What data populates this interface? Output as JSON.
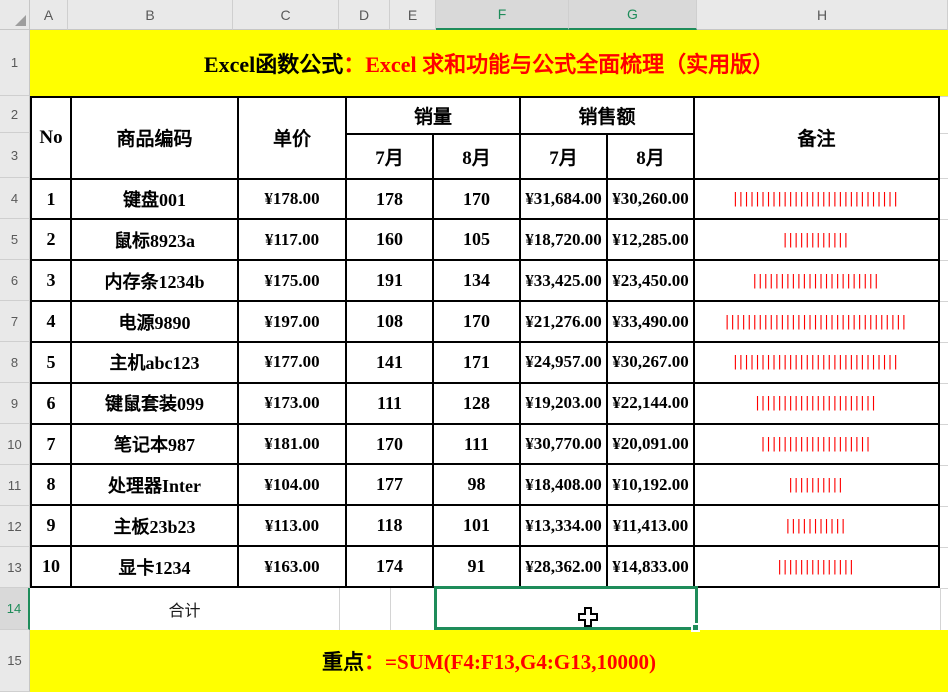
{
  "grid": {
    "column_headers": [
      "A",
      "B",
      "C",
      "D",
      "E",
      "F",
      "G",
      "H"
    ],
    "row_headers": [
      "1",
      "2",
      "3",
      "4",
      "5",
      "6",
      "7",
      "8",
      "9",
      "10",
      "11",
      "12",
      "13",
      "14",
      "15"
    ],
    "selected_columns": [
      "F",
      "G"
    ],
    "selected_row": "14"
  },
  "banner": {
    "black_text": "Excel函数公式",
    "red_text": "：Excel 求和功能与公式全面梳理（实用版）"
  },
  "table": {
    "headers": {
      "no": "No",
      "product_code": "商品编码",
      "unit_price": "单价",
      "sales_qty": "销量",
      "sales_amount": "销售额",
      "remark": "备注",
      "jul": "7月",
      "aug": "8月"
    },
    "bar_char": "|",
    "rows": [
      {
        "no": "1",
        "product": "键盘001",
        "price": "¥178.00",
        "qty_jul": "178",
        "qty_aug": "170",
        "rev_jul": "¥31,684.00",
        "rev_aug": "¥30,260.00",
        "remark_bars": 30
      },
      {
        "no": "2",
        "product": "鼠标8923a",
        "price": "¥117.00",
        "qty_jul": "160",
        "qty_aug": "105",
        "rev_jul": "¥18,720.00",
        "rev_aug": "¥12,285.00",
        "remark_bars": 12
      },
      {
        "no": "3",
        "product": "内存条1234b",
        "price": "¥175.00",
        "qty_jul": "191",
        "qty_aug": "134",
        "rev_jul": "¥33,425.00",
        "rev_aug": "¥23,450.00",
        "remark_bars": 23
      },
      {
        "no": "4",
        "product": "电源9890",
        "price": "¥197.00",
        "qty_jul": "108",
        "qty_aug": "170",
        "rev_jul": "¥21,276.00",
        "rev_aug": "¥33,490.00",
        "remark_bars": 33
      },
      {
        "no": "5",
        "product": "主机abc123",
        "price": "¥177.00",
        "qty_jul": "141",
        "qty_aug": "171",
        "rev_jul": "¥24,957.00",
        "rev_aug": "¥30,267.00",
        "remark_bars": 30
      },
      {
        "no": "6",
        "product": "键鼠套装099",
        "price": "¥173.00",
        "qty_jul": "111",
        "qty_aug": "128",
        "rev_jul": "¥19,203.00",
        "rev_aug": "¥22,144.00",
        "remark_bars": 22
      },
      {
        "no": "7",
        "product": "笔记本987",
        "price": "¥181.00",
        "qty_jul": "170",
        "qty_aug": "111",
        "rev_jul": "¥30,770.00",
        "rev_aug": "¥20,091.00",
        "remark_bars": 20
      },
      {
        "no": "8",
        "product": "处理器Inter",
        "price": "¥104.00",
        "qty_jul": "177",
        "qty_aug": "98",
        "rev_jul": "¥18,408.00",
        "rev_aug": "¥10,192.00",
        "remark_bars": 10
      },
      {
        "no": "9",
        "product": "主板23b23",
        "price": "¥113.00",
        "qty_jul": "118",
        "qty_aug": "101",
        "rev_jul": "¥13,334.00",
        "rev_aug": "¥11,413.00",
        "remark_bars": 11
      },
      {
        "no": "10",
        "product": "显卡1234",
        "price": "¥163.00",
        "qty_jul": "174",
        "qty_aug": "91",
        "rev_jul": "¥28,362.00",
        "rev_aug": "¥14,833.00",
        "remark_bars": 14
      }
    ]
  },
  "total_row": {
    "label": "合计"
  },
  "formula_row": {
    "black_text": "重点",
    "red_text": "：=SUM(F4:F13,G4:G13,10000)"
  },
  "colors": {
    "accent_green": "#1E8C5A",
    "banner_yellow": "#FFFF00",
    "highlight_red": "#FF0000"
  }
}
